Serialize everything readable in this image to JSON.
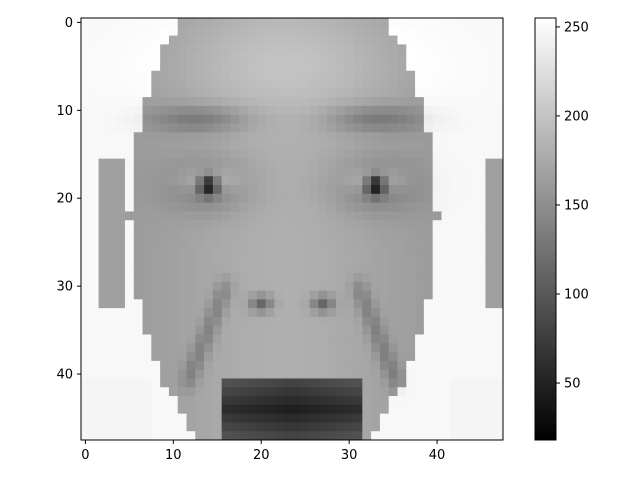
{
  "chart_data": {
    "type": "heatmap",
    "colormap": "gray",
    "image_shape": [
      48,
      48
    ],
    "x_ticks": [
      {
        "value": 0,
        "label": "0"
      },
      {
        "value": 10,
        "label": "10"
      },
      {
        "value": 20,
        "label": "20"
      },
      {
        "value": 30,
        "label": "30"
      },
      {
        "value": 40,
        "label": "40"
      }
    ],
    "y_ticks": [
      {
        "value": 0,
        "label": "0"
      },
      {
        "value": 10,
        "label": "10"
      },
      {
        "value": 20,
        "label": "20"
      },
      {
        "value": 30,
        "label": "30"
      },
      {
        "value": 40,
        "label": "40"
      }
    ],
    "colorbar": {
      "range": [
        18,
        255
      ],
      "ticks": [
        {
          "value": 50,
          "label": "50"
        },
        {
          "value": 100,
          "label": "100"
        },
        {
          "value": 150,
          "label": "150"
        },
        {
          "value": 200,
          "label": "200"
        },
        {
          "value": 250,
          "label": "250"
        }
      ]
    },
    "title": "",
    "xlabel": "",
    "ylabel": ""
  }
}
